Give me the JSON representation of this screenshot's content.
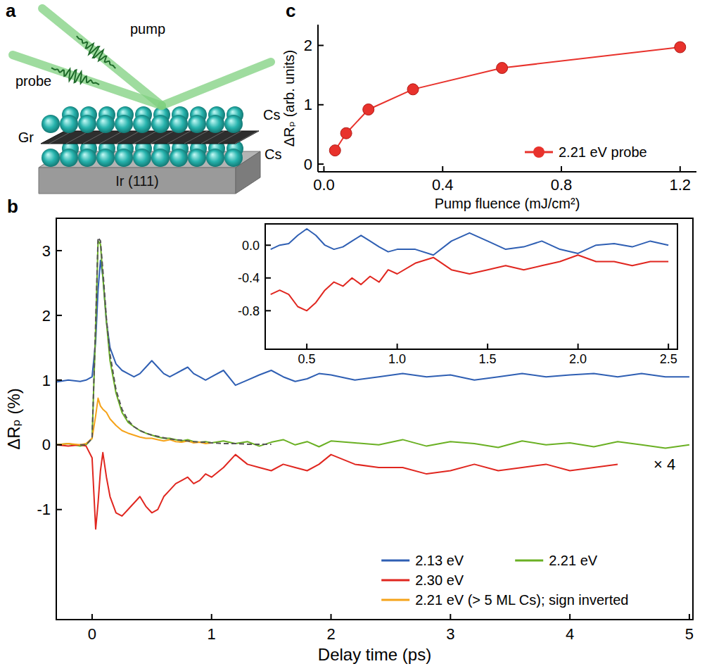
{
  "diagram": {
    "panel": "a",
    "labels": {
      "pump": "pump",
      "probe": "probe",
      "graphene": "Gr",
      "cs_top": "Cs",
      "cs_bottom": "Cs",
      "substrate": "Ir (111)"
    }
  },
  "chart_data": [
    {
      "panel": "b",
      "type": "line",
      "x_label": "Delay time (ps)",
      "y_label": "ΔRₚ (%)",
      "x": [
        -0.3,
        -0.2,
        -0.1,
        -0.05,
        0,
        0.03,
        0.05,
        0.07,
        0.09,
        0.12,
        0.15,
        0.2,
        0.25,
        0.3,
        0.35,
        0.4,
        0.45,
        0.5,
        0.55,
        0.6,
        0.65,
        0.7,
        0.75,
        0.8,
        0.85,
        0.9,
        0.95,
        1.0,
        1.1,
        1.2,
        1.3,
        1.4,
        1.5,
        1.6,
        1.7,
        1.8,
        1.9,
        2.0,
        2.2,
        2.4,
        2.6,
        2.8,
        3.0,
        3.2,
        3.4,
        3.6,
        3.8,
        4.0,
        4.2,
        4.4,
        4.6,
        4.8,
        5.0
      ],
      "xlim": [
        -0.3,
        5.03
      ],
      "ylim": [
        -2.7,
        3.5
      ],
      "xticks": [
        0,
        1,
        2,
        3,
        4,
        5
      ],
      "yticks": [
        -1,
        0,
        1,
        2,
        3
      ],
      "legend": "lower right",
      "series": [
        {
          "name": "2.13 eV",
          "color": "#2f5fb3",
          "line_style": "solid",
          "values": [
            0.97,
            1.0,
            0.98,
            1.0,
            1.05,
            1.6,
            2.4,
            2.85,
            2.6,
            1.9,
            1.5,
            1.25,
            1.15,
            1.1,
            1.05,
            1.1,
            1.2,
            1.3,
            1.2,
            1.1,
            1.05,
            1.1,
            1.15,
            1.2,
            1.1,
            1.05,
            1.0,
            1.05,
            1.15,
            0.92,
            1.0,
            1.08,
            1.15,
            1.05,
            0.98,
            1.02,
            1.1,
            1.08,
            1.0,
            1.05,
            1.1,
            1.05,
            1.08,
            1.0,
            1.05,
            1.1,
            1.05,
            1.08,
            1.1,
            1.05,
            1.1,
            1.05,
            1.05
          ]
        },
        {
          "name": "2.21 eV",
          "color": "#6ab023",
          "line_style": "solid",
          "values": [
            0,
            0.02,
            -0.02,
            0,
            0.1,
            1.8,
            3.15,
            3.1,
            2.6,
            1.9,
            1.3,
            0.8,
            0.5,
            0.35,
            0.28,
            0.22,
            0.18,
            0.15,
            0.12,
            0.1,
            0.1,
            0.08,
            0.06,
            0.08,
            0.05,
            0.04,
            0.05,
            0.03,
            0.06,
            0.02,
            0.05,
            -0.02,
            0.04,
            0.08,
            0.0,
            0.05,
            -0.03,
            0.06,
            0.03,
            0.0,
            0.08,
            -0.02,
            0.05,
            0.02,
            -0.04,
            0.06,
            0.0,
            0.03,
            -0.03,
            0.05,
            0.0,
            -0.05,
            0.0
          ]
        },
        {
          "name": "2.30 eV",
          "color": "#e0261f",
          "line_style": "solid",
          "values": [
            0,
            -0.02,
            0,
            -0.02,
            -0.2,
            -1.3,
            -0.9,
            -0.4,
            -0.12,
            -0.5,
            -0.8,
            -1.05,
            -1.1,
            -1.0,
            -0.9,
            -0.8,
            -0.95,
            -1.05,
            -1.0,
            -0.8,
            -0.7,
            -0.6,
            -0.55,
            -0.5,
            -0.6,
            -0.55,
            -0.45,
            -0.5,
            -0.35,
            -0.15,
            -0.3,
            -0.35,
            -0.4,
            -0.3,
            -0.35,
            -0.4,
            -0.3,
            -0.15,
            -0.3,
            -0.35,
            -0.35,
            -0.45,
            -0.4,
            -0.3,
            -0.4,
            -0.35,
            -0.3,
            -0.4,
            -0.35,
            -0.3,
            null,
            null,
            null
          ]
        },
        {
          "name": "2.21 eV (> 5 ML Cs); sign inverted",
          "color": "#f5a31a",
          "line_style": "solid",
          "values": [
            0,
            0.02,
            0,
            0.02,
            0.1,
            0.45,
            0.72,
            0.6,
            0.55,
            0.5,
            0.4,
            0.3,
            0.22,
            0.18,
            0.15,
            0.12,
            0.1,
            0.1,
            0.08,
            0.06,
            0.08,
            0.05,
            0.04,
            0.06,
            0.03,
            0.04,
            0.02,
            0.03,
            null,
            null,
            null,
            null,
            null,
            null,
            null,
            null,
            null,
            null,
            null,
            null,
            null,
            null,
            null,
            null,
            null,
            null,
            null,
            null,
            null,
            null,
            null,
            null,
            null
          ]
        },
        {
          "color": "#555555",
          "line_style": "dashed",
          "values": [
            null,
            null,
            0,
            0,
            0.1,
            1.9,
            3.2,
            3.15,
            2.7,
            1.95,
            1.4,
            0.85,
            0.55,
            0.38,
            0.28,
            0.22,
            0.18,
            0.15,
            0.13,
            0.11,
            0.09,
            0.08,
            0.07,
            0.06,
            0.05,
            0.04,
            0.04,
            0.03,
            0.02,
            0.02,
            0.01,
            0.01,
            0.01,
            null,
            null,
            null,
            null,
            null,
            null,
            null,
            null,
            null,
            null,
            null,
            null,
            null,
            null,
            null,
            null,
            null,
            null,
            null,
            null
          ]
        }
      ],
      "annotations": [
        {
          "text": "× 4",
          "x": 4.7,
          "y": -0.3
        }
      ]
    },
    {
      "type": "line",
      "x": [
        0.3,
        0.35,
        0.4,
        0.45,
        0.5,
        0.55,
        0.6,
        0.65,
        0.7,
        0.75,
        0.8,
        0.85,
        0.9,
        0.95,
        1.0,
        1.1,
        1.2,
        1.3,
        1.4,
        1.5,
        1.6,
        1.7,
        1.8,
        1.9,
        2.0,
        2.1,
        2.2,
        2.3,
        2.4,
        2.5
      ],
      "xlim": [
        0.27,
        2.55
      ],
      "ylim": [
        -1.27,
        0.26
      ],
      "xticks": [
        0.5,
        {
          "value": 1,
          "label": "1.0"
        },
        1.5,
        {
          "value": 2,
          "label": "2.0"
        },
        2.5
      ],
      "yticks": [
        {
          "value": 0,
          "label": "0.0"
        },
        -0.4,
        -0.8
      ],
      "series": [
        {
          "color": "#2f5fb3",
          "line_style": "solid",
          "values": [
            -0.05,
            0.0,
            0.02,
            0.12,
            0.2,
            0.12,
            0.0,
            -0.05,
            -0.02,
            0.05,
            0.12,
            0.05,
            -0.02,
            -0.08,
            -0.05,
            -0.05,
            -0.12,
            0.05,
            0.15,
            0.05,
            -0.05,
            -0.02,
            0.05,
            -0.05,
            -0.1,
            0.0,
            0.02,
            -0.02,
            0.05,
            0.0
          ]
        },
        {
          "color": "#e0261f",
          "line_style": "solid",
          "values": [
            -0.6,
            -0.55,
            -0.6,
            -0.75,
            -0.8,
            -0.7,
            -0.55,
            -0.45,
            -0.5,
            -0.4,
            -0.48,
            -0.38,
            -0.45,
            -0.3,
            -0.35,
            -0.22,
            -0.15,
            -0.3,
            -0.35,
            -0.3,
            -0.25,
            -0.3,
            -0.25,
            -0.2,
            -0.12,
            -0.2,
            -0.2,
            -0.25,
            -0.2,
            -0.2
          ]
        }
      ]
    },
    {
      "panel": "c",
      "type": "line",
      "x_label": "Pump fluence (mJ/cm²)",
      "y_label": "ΔRₚ (arb. units)",
      "x": [
        0.0375,
        0.075,
        0.15,
        0.3,
        0.6,
        1.2
      ],
      "xlim": [
        -0.02,
        1.255
      ],
      "ylim": [
        -0.13,
        2.35
      ],
      "xticks": [
        {
          "value": 0,
          "label": "0.0"
        },
        0.4,
        0.8,
        1.2
      ],
      "yticks": [
        0,
        1,
        2
      ],
      "legend": "lower right",
      "series": [
        {
          "name": "2.21 eV probe",
          "color": "#e8322c",
          "marker": "circle",
          "line_style": "solid",
          "values": [
            0.23,
            0.52,
            0.92,
            1.26,
            1.62,
            1.97
          ]
        }
      ]
    }
  ]
}
